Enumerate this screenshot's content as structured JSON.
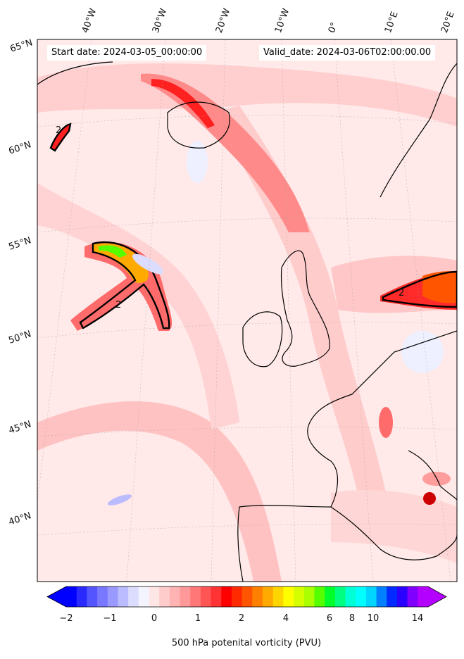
{
  "header": {
    "start_date": "Start date: 2024-03-05_00:00:00",
    "valid_date": "Valid_date: 2024-03-06T02:00:00.00"
  },
  "map": {
    "lon_labels": [
      "40°W",
      "30°W",
      "20°W",
      "10°W",
      "0°",
      "10°E",
      "20°E"
    ],
    "lat_labels": [
      "65°N",
      "60°N",
      "55°N",
      "50°N",
      "45°N",
      "40°N"
    ],
    "contour_labels": [
      "2",
      "2",
      "2"
    ],
    "colors": {
      "background": "#ffe9e9",
      "land_outline": "#000000",
      "negative": "#eef0ff"
    }
  },
  "colorbar": {
    "label": "500 hPa potenital vorticity (PVU)",
    "ticks": [
      "−2",
      "−1",
      "0",
      "1",
      "2",
      "4",
      "6",
      "8",
      "10",
      "14"
    ],
    "colors": [
      "#0000ff",
      "#2a2aff",
      "#5555ff",
      "#7777ff",
      "#9999ff",
      "#bbbbff",
      "#dcdcff",
      "#f4f4ff",
      "#ffe6e6",
      "#ffcccc",
      "#ffb3b3",
      "#ff9999",
      "#ff7777",
      "#ff5555",
      "#ff3333",
      "#ff0000",
      "#ff2a00",
      "#ff5500",
      "#ff8000",
      "#ffaa00",
      "#ffd500",
      "#ffff00",
      "#d5ff00",
      "#aaff00",
      "#55ff00",
      "#00ff2a",
      "#00ff80",
      "#00ffd5",
      "#00ffff",
      "#00d5ff",
      "#0080ff",
      "#002aff",
      "#2a00ff",
      "#8000ff",
      "#b300ff"
    ]
  }
}
